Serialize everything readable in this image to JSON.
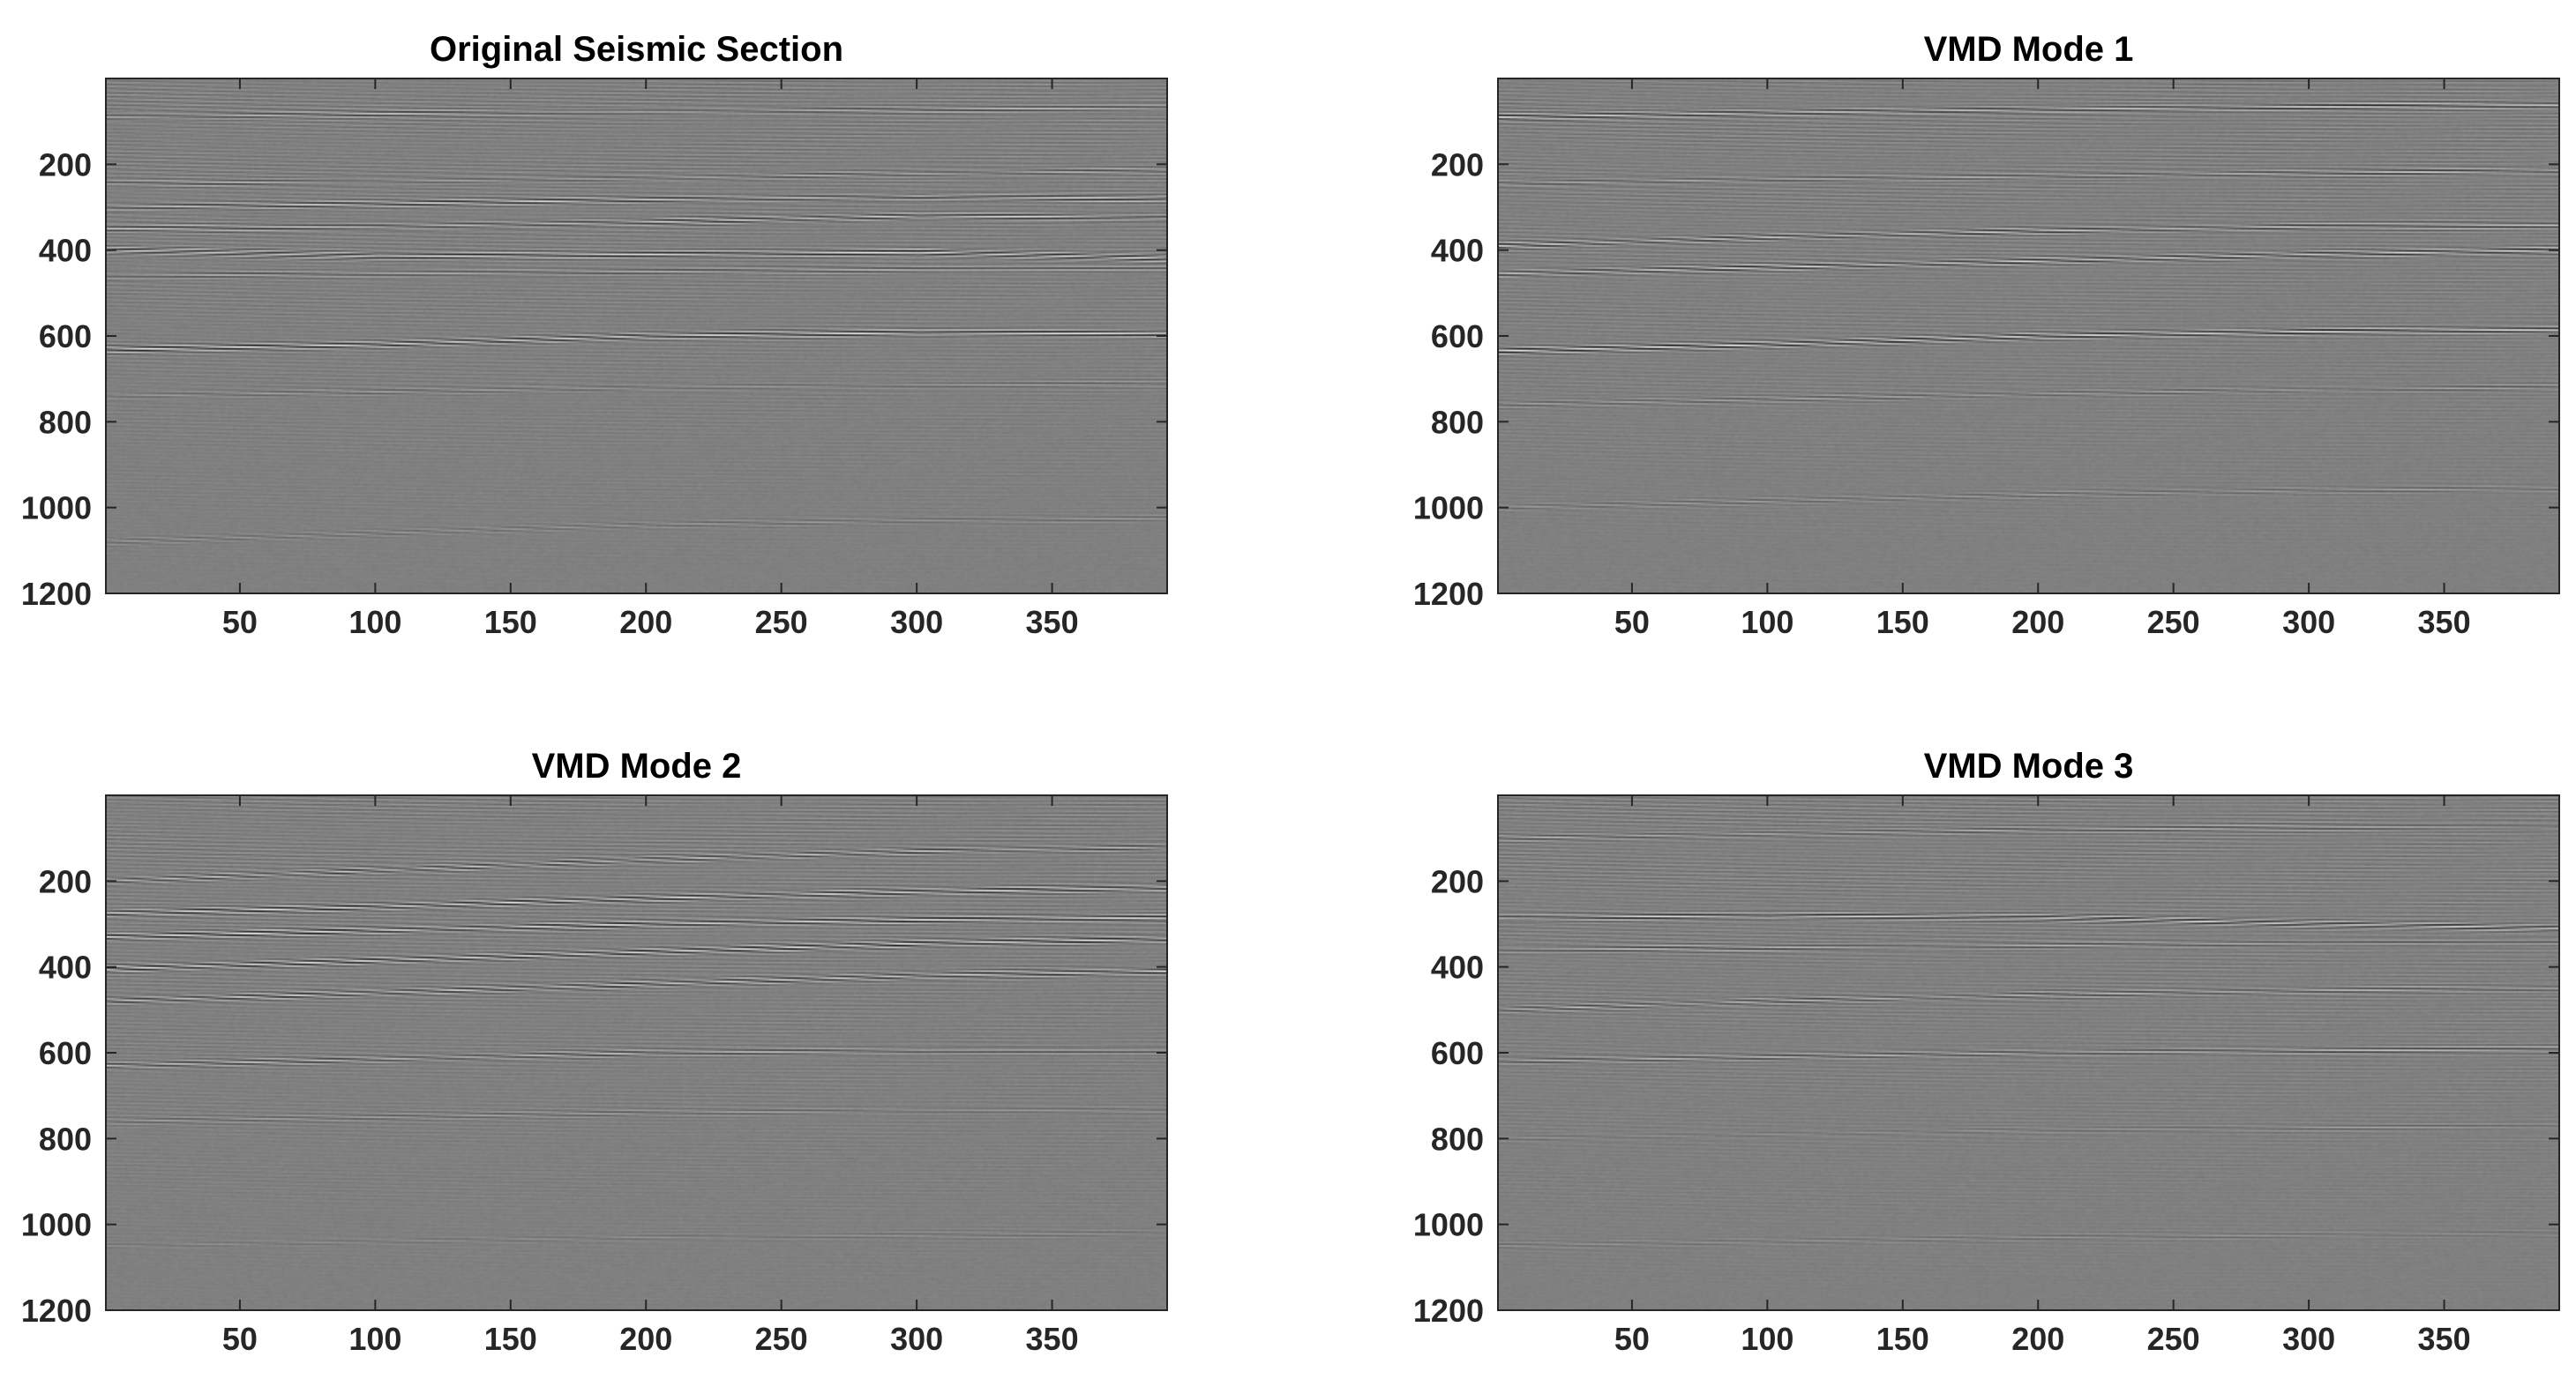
{
  "chart_data": [
    {
      "type": "heatmap",
      "title": "Original Seismic Section",
      "xlabel": "",
      "ylabel": "",
      "xlim": [
        0.5,
        392.5
      ],
      "ylim": [
        1200,
        0
      ],
      "xticks": [
        50,
        100,
        150,
        200,
        250,
        300,
        350
      ],
      "yticks": [
        200,
        400,
        600,
        800,
        1000,
        1200
      ],
      "colormap": "gray",
      "reflectors": [
        {
          "x": [
            0,
            100,
            200,
            300,
            392
          ],
          "y": [
            90,
            82,
            78,
            72,
            68
          ],
          "strength": 0.55
        },
        {
          "x": [
            0,
            100,
            200,
            300,
            392
          ],
          "y": [
            245,
            240,
            232,
            222,
            215
          ],
          "strength": 0.5
        },
        {
          "x": [
            0,
            100,
            200,
            300,
            392
          ],
          "y": [
            300,
            292,
            282,
            275,
            280
          ],
          "strength": 0.75
        },
        {
          "x": [
            0,
            100,
            200,
            300,
            392
          ],
          "y": [
            350,
            345,
            335,
            320,
            325
          ],
          "strength": 0.7
        },
        {
          "x": [
            0,
            100,
            200,
            300,
            392
          ],
          "y": [
            400,
            415,
            410,
            405,
            420
          ],
          "strength": 0.8
        },
        {
          "x": [
            0,
            100,
            200,
            300,
            392
          ],
          "y": [
            460,
            455,
            450,
            445,
            445
          ],
          "strength": 0.55
        },
        {
          "x": [
            0,
            100,
            200,
            300,
            392
          ],
          "y": [
            632,
            620,
            600,
            592,
            595
          ],
          "strength": 0.85
        },
        {
          "x": [
            0,
            100,
            200,
            300,
            392
          ],
          "y": [
            740,
            730,
            720,
            715,
            712
          ],
          "strength": 0.3
        },
        {
          "x": [
            0,
            100,
            200,
            300,
            392
          ],
          "y": [
            1080,
            1060,
            1040,
            1030,
            1025
          ],
          "strength": 0.25
        }
      ]
    },
    {
      "type": "heatmap",
      "title": "VMD Mode 1",
      "xlabel": "",
      "ylabel": "",
      "xlim": [
        0.5,
        392.5
      ],
      "ylim": [
        1200,
        0
      ],
      "xticks": [
        50,
        100,
        150,
        200,
        250,
        300,
        350
      ],
      "yticks": [
        200,
        400,
        600,
        800,
        1000,
        1200
      ],
      "colormap": "gray",
      "reflectors": [
        {
          "x": [
            0,
            100,
            200,
            300,
            392
          ],
          "y": [
            90,
            80,
            72,
            66,
            62
          ],
          "strength": 0.8
        },
        {
          "x": [
            0,
            100,
            200,
            300,
            392
          ],
          "y": [
            245,
            235,
            228,
            220,
            215
          ],
          "strength": 0.6
        },
        {
          "x": [
            0,
            100,
            200,
            300,
            392
          ],
          "y": [
            390,
            370,
            355,
            345,
            342
          ],
          "strength": 0.7
        },
        {
          "x": [
            0,
            100,
            200,
            300,
            392
          ],
          "y": [
            455,
            440,
            425,
            410,
            400
          ],
          "strength": 0.75
        },
        {
          "x": [
            0,
            100,
            200,
            300,
            392
          ],
          "y": [
            635,
            620,
            600,
            590,
            585
          ],
          "strength": 0.9
        },
        {
          "x": [
            0,
            100,
            200,
            300,
            392
          ],
          "y": [
            760,
            748,
            735,
            725,
            720
          ],
          "strength": 0.35
        },
        {
          "x": [
            0,
            100,
            200,
            300,
            392
          ],
          "y": [
            1000,
            985,
            970,
            960,
            955
          ],
          "strength": 0.3
        }
      ]
    },
    {
      "type": "heatmap",
      "title": "VMD Mode 2",
      "xlabel": "",
      "ylabel": "",
      "xlim": [
        0.5,
        392.5
      ],
      "ylim": [
        1200,
        0
      ],
      "xticks": [
        50,
        100,
        150,
        200,
        250,
        300,
        350
      ],
      "yticks": [
        200,
        400,
        600,
        800,
        1000,
        1200
      ],
      "colormap": "gray",
      "reflectors": [
        {
          "x": [
            0,
            100,
            200,
            300,
            392
          ],
          "y": [
            200,
            175,
            150,
            130,
            120
          ],
          "strength": 0.6
        },
        {
          "x": [
            0,
            100,
            200,
            300,
            392
          ],
          "y": [
            275,
            260,
            240,
            225,
            215
          ],
          "strength": 0.85
        },
        {
          "x": [
            0,
            100,
            200,
            300,
            392
          ],
          "y": [
            330,
            315,
            300,
            290,
            285
          ],
          "strength": 0.9
        },
        {
          "x": [
            0,
            100,
            200,
            300,
            392
          ],
          "y": [
            405,
            385,
            365,
            345,
            335
          ],
          "strength": 0.9
        },
        {
          "x": [
            0,
            100,
            200,
            300,
            392
          ],
          "y": [
            480,
            460,
            440,
            420,
            410
          ],
          "strength": 0.75
        },
        {
          "x": [
            0,
            100,
            200,
            300,
            392
          ],
          "y": [
            630,
            615,
            600,
            595,
            595
          ],
          "strength": 0.6
        },
        {
          "x": [
            0,
            100,
            200,
            300,
            392
          ],
          "y": [
            760,
            750,
            740,
            735,
            732
          ],
          "strength": 0.3
        },
        {
          "x": [
            0,
            100,
            200,
            300,
            392
          ],
          "y": [
            1050,
            1040,
            1030,
            1025,
            1020
          ],
          "strength": 0.2
        }
      ]
    },
    {
      "type": "heatmap",
      "title": "VMD Mode 3",
      "xlabel": "",
      "ylabel": "",
      "xlim": [
        0.5,
        392.5
      ],
      "ylim": [
        1200,
        0
      ],
      "xticks": [
        50,
        100,
        150,
        200,
        250,
        300,
        350
      ],
      "yticks": [
        200,
        400,
        600,
        800,
        1000,
        1200
      ],
      "colormap": "gray",
      "reflectors": [
        {
          "x": [
            0,
            100,
            200,
            300,
            392
          ],
          "y": [
            100,
            90,
            80,
            75,
            72
          ],
          "strength": 0.45
        },
        {
          "x": [
            0,
            100,
            200,
            300,
            392
          ],
          "y": [
            285,
            280,
            285,
            300,
            310
          ],
          "strength": 0.8
        },
        {
          "x": [
            0,
            100,
            200,
            300,
            392
          ],
          "y": [
            360,
            355,
            350,
            345,
            345
          ],
          "strength": 0.55
        },
        {
          "x": [
            0,
            100,
            200,
            300,
            392
          ],
          "y": [
            500,
            480,
            465,
            455,
            450
          ],
          "strength": 0.5
        },
        {
          "x": [
            0,
            100,
            200,
            300,
            392
          ],
          "y": [
            620,
            610,
            600,
            595,
            592
          ],
          "strength": 0.65
        },
        {
          "x": [
            0,
            100,
            200,
            300,
            392
          ],
          "y": [
            800,
            790,
            780,
            775,
            772
          ],
          "strength": 0.25
        },
        {
          "x": [
            0,
            100,
            200,
            300,
            392
          ],
          "y": [
            1050,
            1040,
            1030,
            1025,
            1020
          ],
          "strength": 0.2
        }
      ]
    }
  ]
}
